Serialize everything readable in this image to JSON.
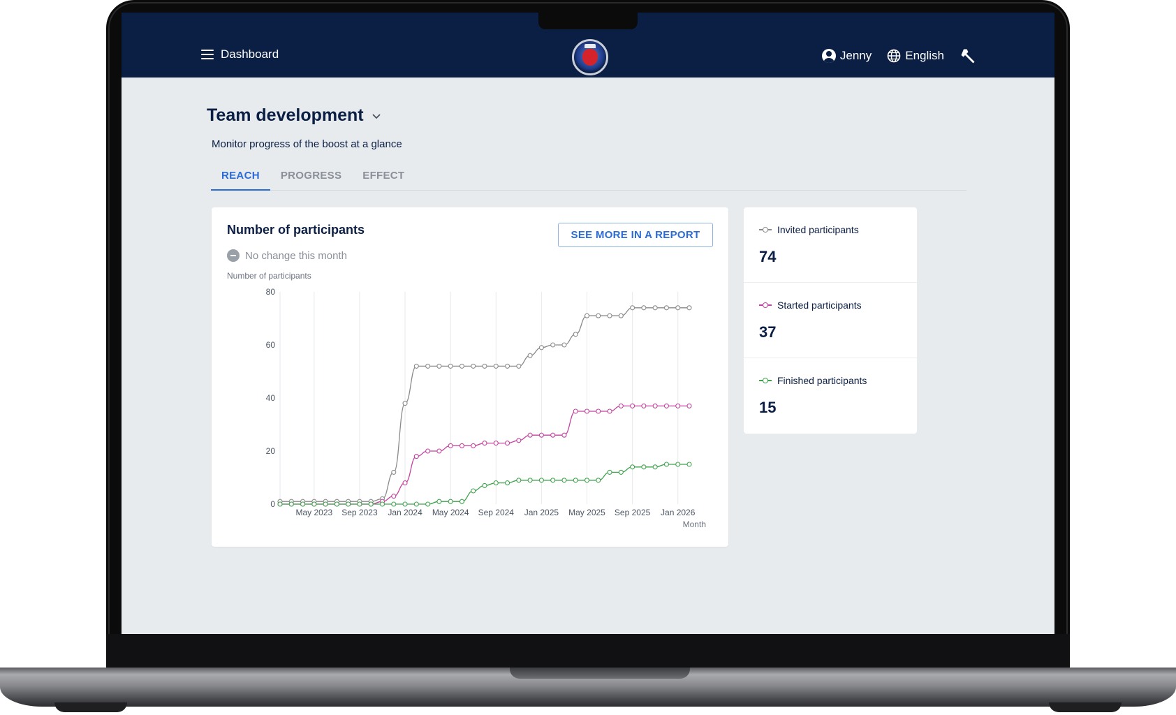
{
  "header": {
    "menu_label": "Dashboard",
    "user_name": "Jenny",
    "language": "English"
  },
  "page": {
    "title": "Team development",
    "subtitle": "Monitor progress of the boost at a glance",
    "tabs": [
      {
        "label": "REACH",
        "active": true
      },
      {
        "label": "PROGRESS",
        "active": false
      },
      {
        "label": "EFFECT",
        "active": false
      }
    ]
  },
  "chart_card": {
    "title": "Number of participants",
    "report_button": "SEE MORE IN A REPORT",
    "change_text": "No change this month"
  },
  "stats": [
    {
      "label": "Invited participants",
      "value": "74",
      "color": "#8a8a8a"
    },
    {
      "label": "Started participants",
      "value": "37",
      "color": "#c2429e"
    },
    {
      "label": "Finished participants",
      "value": "15",
      "color": "#3fa34d"
    }
  ],
  "chart_data": {
    "type": "line",
    "ylabel": "Number of participants",
    "xlabel": "Month",
    "ylim": [
      0,
      80
    ],
    "yticks": [
      0,
      20,
      40,
      60,
      80
    ],
    "x_tick_labels": [
      "May 2023",
      "Sep 2023",
      "Jan 2024",
      "May 2024",
      "Sep 2024",
      "Jan 2025",
      "May 2025",
      "Sep 2025",
      "Jan 2026"
    ],
    "x_months_start": "Feb 2023",
    "x_months_end": "Jan 2026",
    "grid": "vertical",
    "series": [
      {
        "name": "Invited participants",
        "color": "#8a8a8a",
        "values": [
          1,
          1,
          1,
          1,
          1,
          1,
          1,
          1,
          1,
          2,
          12,
          38,
          52,
          52,
          52,
          52,
          52,
          52,
          52,
          52,
          52,
          52,
          56,
          59,
          60,
          60,
          64,
          71,
          71,
          71,
          71,
          74,
          74,
          74,
          74,
          74,
          74
        ]
      },
      {
        "name": "Started participants",
        "color": "#c2429e",
        "values": [
          0,
          0,
          0,
          0,
          0,
          0,
          0,
          0,
          0,
          1,
          3,
          8,
          18,
          20,
          20,
          22,
          22,
          22,
          23,
          23,
          23,
          24,
          26,
          26,
          26,
          26,
          35,
          35,
          35,
          35,
          37,
          37,
          37,
          37,
          37,
          37,
          37
        ]
      },
      {
        "name": "Finished participants",
        "color": "#3fa34d",
        "values": [
          0,
          0,
          0,
          0,
          0,
          0,
          0,
          0,
          0,
          0,
          0,
          0,
          0,
          0,
          1,
          1,
          1,
          5,
          7,
          8,
          8,
          9,
          9,
          9,
          9,
          9,
          9,
          9,
          9,
          12,
          12,
          14,
          14,
          14,
          15,
          15,
          15
        ]
      }
    ]
  }
}
